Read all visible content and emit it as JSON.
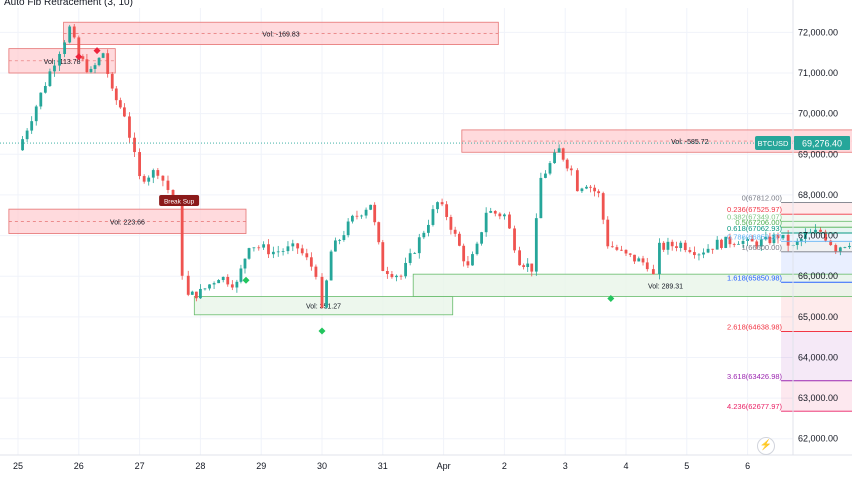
{
  "indicator_title": "Auto Fib Retracement (3, 10)",
  "symbol": "BTCUSD",
  "last_price": "69,276.40",
  "colors": {
    "up": "#26a69a",
    "down": "#ef5350",
    "supply_fill": "#ffcdd2",
    "supply_stroke": "#e57373",
    "demand_fill": "#e8f5e9",
    "demand_stroke": "#66bb6a",
    "label_bg": "#26a69a"
  },
  "flash_icon": "lightning-icon",
  "chart_data": {
    "type": "candlestick",
    "y_range": [
      61600,
      72600
    ],
    "y_ticks": [
      "62,000.00",
      "63,000.00",
      "64,000.00",
      "65,000.00",
      "66,000.00",
      "67,000.00",
      "68,000.00",
      "69,000.00",
      "70,000.00",
      "71,000.00",
      "72,000.00"
    ],
    "y_tick_values": [
      62000,
      63000,
      64000,
      65000,
      66000,
      67000,
      68000,
      69000,
      70000,
      71000,
      72000
    ],
    "x_ticks": [
      "25",
      "26",
      "27",
      "28",
      "29",
      "30",
      "31",
      "Apr",
      "2",
      "3",
      "4",
      "5",
      "6"
    ],
    "price_path": [
      [
        0,
        69100
      ],
      [
        0.3,
        70200
      ],
      [
        0.6,
        71300
      ],
      [
        0.85,
        72100
      ],
      [
        1.0,
        71400
      ],
      [
        1.2,
        71000
      ],
      [
        1.4,
        71500
      ],
      [
        1.55,
        70500
      ],
      [
        1.75,
        70000
      ],
      [
        2.0,
        68400
      ],
      [
        2.3,
        68600
      ],
      [
        2.55,
        67900
      ],
      [
        2.62,
        67700
      ],
      [
        2.7,
        66100
      ],
      [
        2.8,
        65500
      ],
      [
        3.0,
        65600
      ],
      [
        3.3,
        66000
      ],
      [
        3.6,
        65800
      ],
      [
        3.8,
        66800
      ],
      [
        4.2,
        66600
      ],
      [
        4.6,
        66700
      ],
      [
        4.9,
        66100
      ],
      [
        5.0,
        65100
      ],
      [
        5.15,
        66600
      ],
      [
        5.5,
        67400
      ],
      [
        5.8,
        67800
      ],
      [
        6.0,
        66200
      ],
      [
        6.3,
        66000
      ],
      [
        6.6,
        66900
      ],
      [
        6.9,
        67800
      ],
      [
        7.05,
        67500
      ],
      [
        7.4,
        66200
      ],
      [
        7.55,
        66700
      ],
      [
        7.7,
        67600
      ],
      [
        8.0,
        67500
      ],
      [
        8.25,
        66400
      ],
      [
        8.45,
        66200
      ],
      [
        8.6,
        68400
      ],
      [
        8.9,
        69100
      ],
      [
        9.1,
        68600
      ],
      [
        9.2,
        68200
      ],
      [
        9.35,
        68300
      ],
      [
        9.55,
        68000
      ],
      [
        9.7,
        66800
      ],
      [
        10.0,
        66500
      ],
      [
        10.35,
        66300
      ],
      [
        10.45,
        66000
      ],
      [
        10.55,
        66700
      ],
      [
        10.9,
        66800
      ],
      [
        11.2,
        66600
      ],
      [
        11.5,
        66800
      ],
      [
        11.85,
        66900
      ],
      [
        12.0,
        66800
      ],
      [
        12.3,
        66850
      ],
      [
        12.5,
        67000
      ],
      [
        12.75,
        66700
      ],
      [
        12.95,
        67000
      ],
      [
        13.2,
        67100
      ],
      [
        13.45,
        66700
      ],
      [
        13.75,
        66900
      ],
      [
        13.95,
        67300
      ],
      [
        14.15,
        67200
      ],
      [
        14.3,
        67450
      ],
      [
        14.45,
        67900
      ],
      [
        14.6,
        69000
      ],
      [
        14.7,
        69500
      ],
      [
        14.8,
        69276
      ]
    ],
    "supply_zones": [
      {
        "x0": 0.75,
        "x1": 7.9,
        "top": 72250,
        "bottom": 71700,
        "label": "Vol: -169.83"
      },
      {
        "x0": -0.15,
        "x1": 1.6,
        "top": 71600,
        "bottom": 71000,
        "label": "Vol: -113.78"
      },
      {
        "x0": -0.15,
        "x1": 3.75,
        "top": 67650,
        "bottom": 67050,
        "label": "Vol: 223.66"
      },
      {
        "x0": 7.3,
        "x1": 14.8,
        "top": 69600,
        "bottom": 69050,
        "label": "Vol: -585.72"
      }
    ],
    "demand_zones": [
      {
        "x0": 2.9,
        "x1": 7.15,
        "top": 65500,
        "bottom": 65050,
        "label": "Vol: 351.27"
      },
      {
        "x0": 6.5,
        "x1": 14.8,
        "top": 66050,
        "bottom": 65500,
        "label": "Vol: 289.31"
      }
    ],
    "fib_levels": [
      {
        "label": "0(67812.00)",
        "price": 67812,
        "color": "#787b86"
      },
      {
        "label": "0.236(67525.97)",
        "price": 67525.97,
        "color": "#f23645"
      },
      {
        "label": "0.382(67349.07)",
        "price": 67349.07,
        "color": "#81c784"
      },
      {
        "label": "0.5(67206.00)",
        "price": 67206,
        "color": "#4caf50"
      },
      {
        "label": "0.618(67062.93)",
        "price": 67062.93,
        "color": "#089981"
      },
      {
        "label": "0.786(66859.37)",
        "price": 66859.37,
        "color": "#64b5f6"
      },
      {
        "label": "1(66600.00)",
        "price": 66600,
        "color": "#787b86"
      },
      {
        "label": "1.618(65850.98)",
        "price": 65850.98,
        "color": "#2962ff"
      },
      {
        "label": "2.618(64638.98)",
        "price": 64638.98,
        "color": "#f23645"
      },
      {
        "label": "3.618(63426.98)",
        "price": 63426.98,
        "color": "#9c27b0"
      },
      {
        "label": "4.236(62677.97)",
        "price": 62677.97,
        "color": "#e91e63"
      }
    ],
    "fib_x_start": 12.55,
    "fib_x_end": 14.75,
    "signals": [
      {
        "x": 1.0,
        "price": 71400,
        "type": "sell"
      },
      {
        "x": 1.3,
        "price": 71550,
        "type": "sell"
      },
      {
        "x": 3.75,
        "price": 65900,
        "type": "buy"
      },
      {
        "x": 5.0,
        "price": 64650,
        "type": "buy"
      },
      {
        "x": 9.75,
        "price": 65450,
        "type": "buy"
      }
    ],
    "sup_label": {
      "x": 2.65,
      "price": 67850,
      "text": "Break Sup"
    },
    "last_price_level": 69276.4
  }
}
